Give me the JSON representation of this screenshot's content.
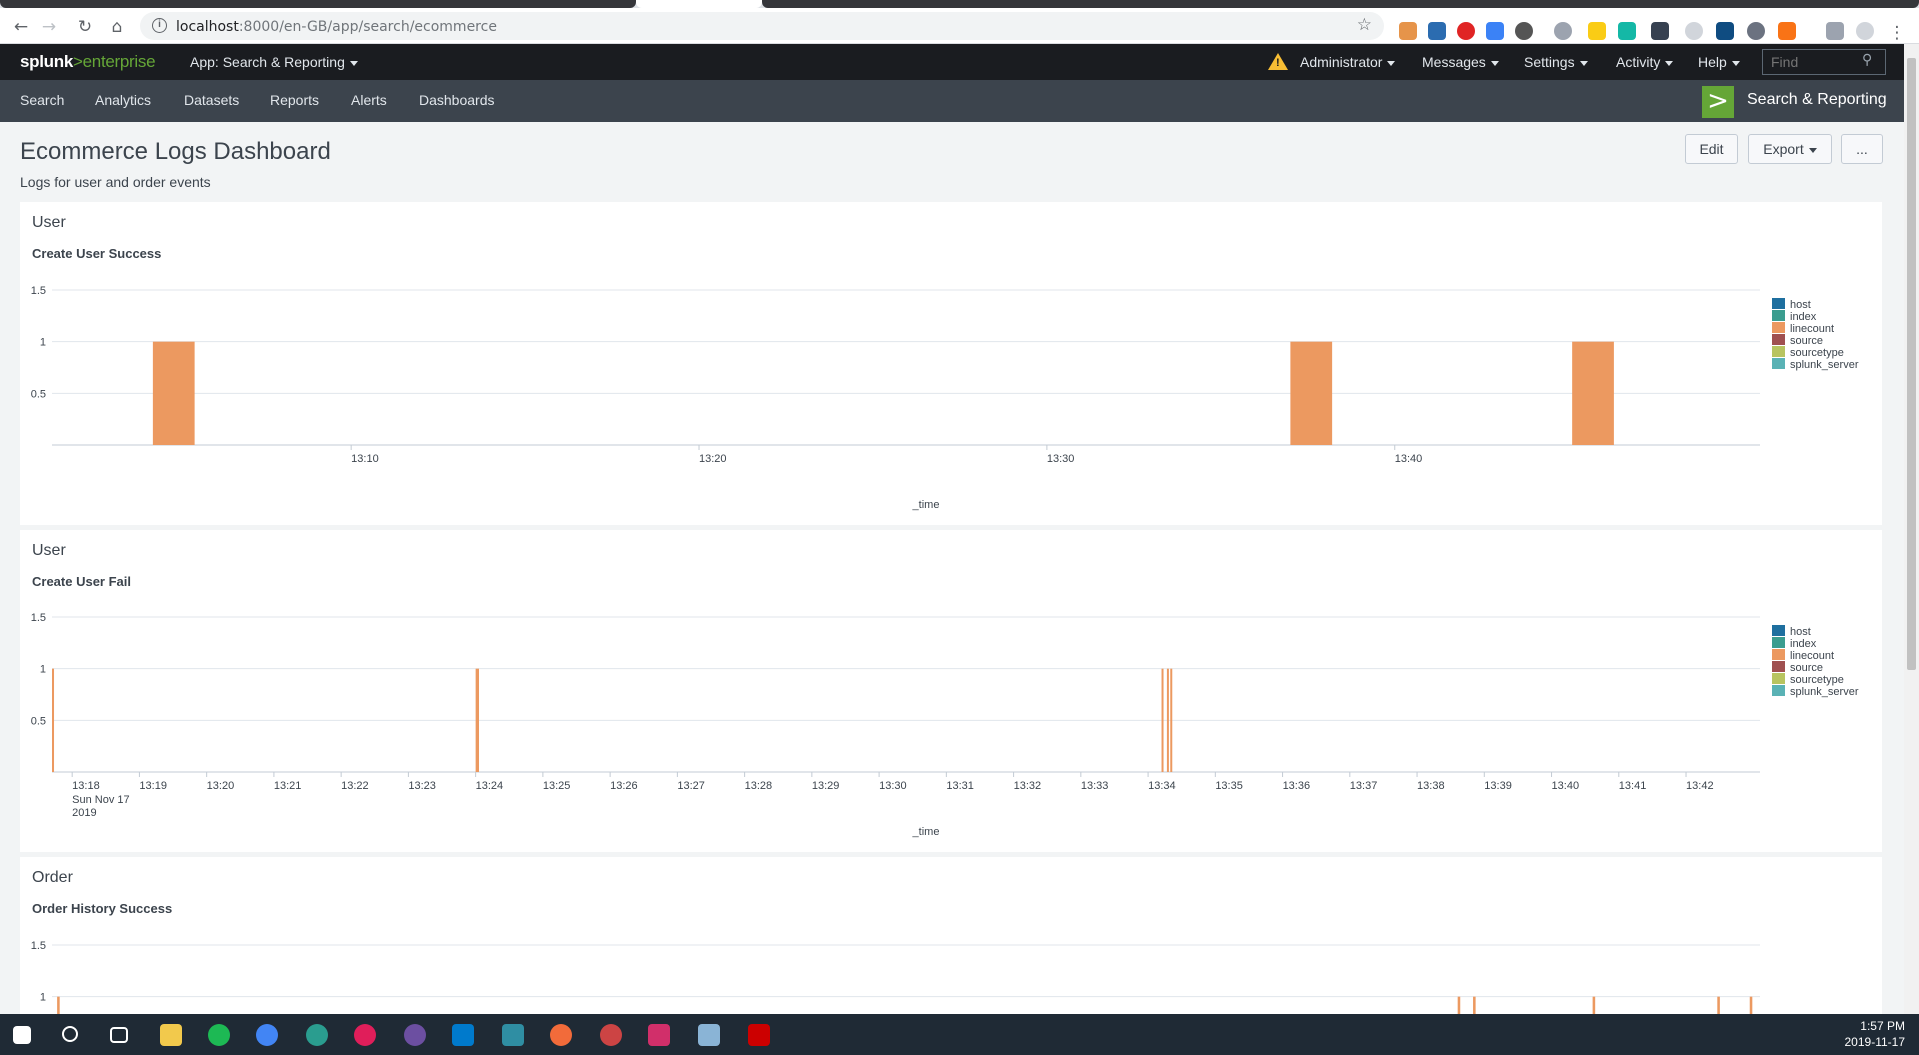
{
  "browser": {
    "url_host": "localhost",
    "url_path": ":8000/en-GB/app/search/ecommerce"
  },
  "splunk": {
    "logo_text": "splunk",
    "logo_gt": ">",
    "logo_suffix": "enterprise",
    "app_menu": "App: Search & Reporting",
    "user_menu": "Administrator",
    "messages_menu": "Messages",
    "settings_menu": "Settings",
    "activity_menu": "Activity",
    "help_menu": "Help",
    "find_placeholder": "Find"
  },
  "appbar": {
    "nav": [
      "Search",
      "Analytics",
      "Datasets",
      "Reports",
      "Alerts",
      "Dashboards"
    ],
    "app_name": "Search & Reporting"
  },
  "dashboard": {
    "title": "Ecommerce Logs Dashboard",
    "description": "Logs for user and order events",
    "edit_label": "Edit",
    "export_label": "Export",
    "more_label": "..."
  },
  "legend_items": [
    {
      "label": "host",
      "color": "#1e6f9f"
    },
    {
      "label": "index",
      "color": "#3b9d8f"
    },
    {
      "label": "linecount",
      "color": "#ec9960"
    },
    {
      "label": "source",
      "color": "#a05050"
    },
    {
      "label": "sourcetype",
      "color": "#b8c460"
    },
    {
      "label": "splunk_server",
      "color": "#5ab2b5"
    }
  ],
  "chart_data": [
    {
      "type": "bar",
      "panel_title": "User",
      "title": "Create User Success",
      "xlabel": "_time",
      "ylabel": "",
      "ylim": [
        0,
        1.5
      ],
      "yticks": [
        "1.5",
        "1",
        "0.5"
      ],
      "x_tick_labels": [
        "13:10",
        "13:20",
        "13:30",
        "13:40"
      ],
      "xlim_minutes": [
        1.4,
        50.5
      ],
      "x_tick_minutes": [
        10,
        20,
        30,
        40
      ],
      "series": [
        {
          "name": "linecount",
          "bars": [
            {
              "start_minute": 4.3,
              "end_minute": 5.5,
              "value": 1
            },
            {
              "start_minute": 37.0,
              "end_minute": 38.2,
              "value": 1
            },
            {
              "start_minute": 45.1,
              "end_minute": 46.3,
              "value": 1
            }
          ]
        }
      ]
    },
    {
      "type": "bar",
      "panel_title": "User",
      "title": "Create User Fail",
      "xlabel": "_time",
      "ylabel": "",
      "ylim": [
        0,
        1.5
      ],
      "yticks": [
        "1.5",
        "1",
        "0.5"
      ],
      "x_tick_labels": [
        "13:18",
        "13:19",
        "13:20",
        "13:21",
        "13:22",
        "13:23",
        "13:24",
        "13:25",
        "13:26",
        "13:27",
        "13:28",
        "13:29",
        "13:30",
        "13:31",
        "13:32",
        "13:33",
        "13:34",
        "13:35",
        "13:36",
        "13:37",
        "13:38",
        "13:39",
        "13:40",
        "13:41",
        "13:42"
      ],
      "x_sublabel": [
        "Sun Nov 17",
        "2019"
      ],
      "xlim_minutes": [
        17.7,
        43.1
      ],
      "x_tick_minutes": [
        18,
        19,
        20,
        21,
        22,
        23,
        24,
        25,
        26,
        27,
        28,
        29,
        30,
        31,
        32,
        33,
        34,
        35,
        36,
        37,
        38,
        39,
        40,
        41,
        42
      ],
      "series": [
        {
          "name": "linecount",
          "bars": [
            {
              "start_minute": 17.7,
              "end_minute": 17.73,
              "value": 1
            },
            {
              "start_minute": 24.0,
              "end_minute": 24.05,
              "value": 1
            },
            {
              "start_minute": 34.2,
              "end_minute": 34.22,
              "value": 1
            },
            {
              "start_minute": 34.28,
              "end_minute": 34.3,
              "value": 1
            },
            {
              "start_minute": 34.33,
              "end_minute": 34.35,
              "value": 1
            }
          ]
        }
      ]
    },
    {
      "type": "bar",
      "panel_title": "Order",
      "title": "Order History Success",
      "xlabel": "",
      "ylabel": "",
      "ylim": [
        0,
        1.5
      ],
      "yticks": [
        "1.5",
        "1"
      ],
      "xlim_minutes": [
        0,
        100
      ],
      "series": [
        {
          "name": "linecount",
          "bars": [
            {
              "start_minute": 0.3,
              "end_minute": 0.45,
              "value": 1
            },
            {
              "start_minute": 82.3,
              "end_minute": 82.45,
              "value": 1
            },
            {
              "start_minute": 83.2,
              "end_minute": 83.35,
              "value": 1
            },
            {
              "start_minute": 90.2,
              "end_minute": 90.35,
              "value": 1
            },
            {
              "start_minute": 97.5,
              "end_minute": 97.65,
              "value": 1
            },
            {
              "start_minute": 99.4,
              "end_minute": 99.55,
              "value": 1
            }
          ]
        }
      ]
    }
  ],
  "taskbar": {
    "time": "1:57 PM",
    "date": "2019-11-17"
  }
}
